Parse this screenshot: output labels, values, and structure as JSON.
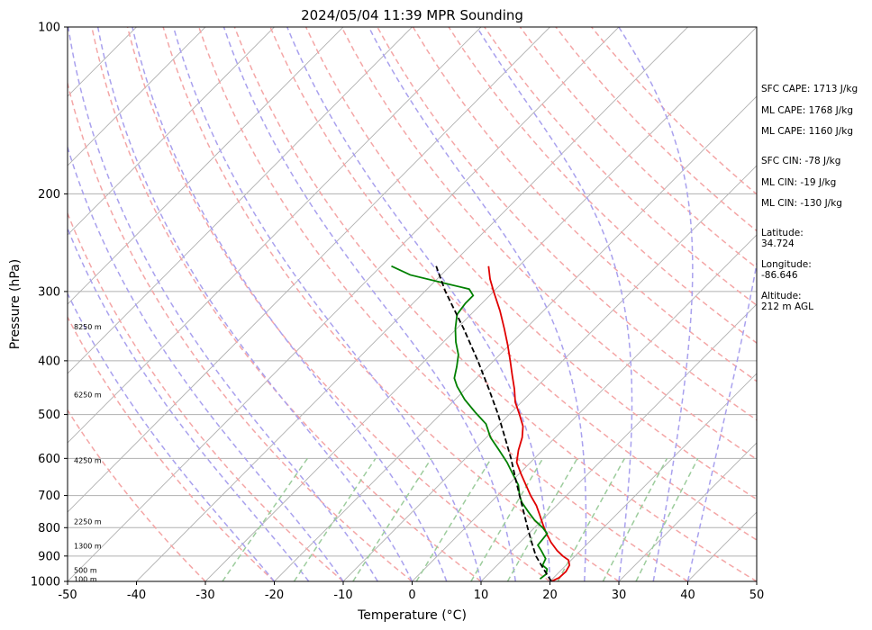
{
  "chart_data": {
    "type": "line",
    "title": "2024/05/04 11:39 MPR Sounding",
    "xlabel": "Temperature (°C)",
    "ylabel": "Pressure (hPa)",
    "xlim": [
      -50,
      50
    ],
    "ylim": [
      1000,
      100
    ],
    "yscale": "log",
    "skew": "skew-T",
    "x_ticks": [
      -50,
      -40,
      -30,
      -20,
      -10,
      0,
      10,
      20,
      30,
      40,
      50
    ],
    "y_ticks": [
      100,
      200,
      300,
      400,
      500,
      600,
      700,
      800,
      900,
      1000
    ],
    "grid": true,
    "series": [
      {
        "role": "temperature",
        "color": "#e00000",
        "points": [
          [
            1000,
            20.2
          ],
          [
            985,
            20.8
          ],
          [
            960,
            20.9
          ],
          [
            935,
            20.5
          ],
          [
            915,
            19.6
          ],
          [
            900,
            18.2
          ],
          [
            880,
            16.6
          ],
          [
            850,
            14.5
          ],
          [
            820,
            12.6
          ],
          [
            790,
            10.8
          ],
          [
            760,
            9.0
          ],
          [
            730,
            7.1
          ],
          [
            700,
            4.8
          ],
          [
            670,
            2.6
          ],
          [
            640,
            0.3
          ],
          [
            610,
            -2.0
          ],
          [
            580,
            -3.5
          ],
          [
            550,
            -4.8
          ],
          [
            525,
            -6.3
          ],
          [
            500,
            -8.5
          ],
          [
            475,
            -10.9
          ],
          [
            450,
            -12.9
          ],
          [
            425,
            -15.2
          ],
          [
            400,
            -17.6
          ],
          [
            375,
            -20.2
          ],
          [
            350,
            -23.1
          ],
          [
            325,
            -26.3
          ],
          [
            300,
            -30.0
          ],
          [
            285,
            -32.3
          ],
          [
            270,
            -34.4
          ]
        ]
      },
      {
        "role": "dewpoint",
        "color": "#008000",
        "points": [
          [
            990,
            18.2
          ],
          [
            970,
            18.4
          ],
          [
            950,
            17.8
          ],
          [
            935,
            16.6
          ],
          [
            910,
            16.1
          ],
          [
            880,
            14.3
          ],
          [
            860,
            13.0
          ],
          [
            845,
            12.9
          ],
          [
            820,
            12.7
          ],
          [
            800,
            11.2
          ],
          [
            775,
            8.9
          ],
          [
            750,
            6.9
          ],
          [
            720,
            4.5
          ],
          [
            700,
            3.2
          ],
          [
            670,
            1.5
          ],
          [
            640,
            -0.9
          ],
          [
            610,
            -3.4
          ],
          [
            580,
            -6.3
          ],
          [
            550,
            -9.4
          ],
          [
            520,
            -12.0
          ],
          [
            495,
            -15.3
          ],
          [
            470,
            -18.6
          ],
          [
            445,
            -21.6
          ],
          [
            430,
            -23.2
          ],
          [
            410,
            -24.5
          ],
          [
            390,
            -26.0
          ],
          [
            370,
            -28.2
          ],
          [
            350,
            -30.2
          ],
          [
            330,
            -32.0
          ],
          [
            315,
            -32.4
          ],
          [
            305,
            -32.4
          ],
          [
            297,
            -33.9
          ],
          [
            290,
            -38.2
          ],
          [
            280,
            -44.5
          ],
          [
            270,
            -48.5
          ]
        ]
      },
      {
        "role": "parcel",
        "color": "#000000",
        "style": "dashed",
        "points": [
          [
            1000,
            20.2
          ],
          [
            950,
            17.3
          ],
          [
            900,
            14.3
          ],
          [
            850,
            11.7
          ],
          [
            800,
            9.0
          ],
          [
            750,
            6.2
          ],
          [
            700,
            3.2
          ],
          [
            650,
            0.0
          ],
          [
            600,
            -3.4
          ],
          [
            550,
            -7.3
          ],
          [
            500,
            -11.6
          ],
          [
            450,
            -16.6
          ],
          [
            400,
            -22.3
          ],
          [
            350,
            -29.0
          ],
          [
            300,
            -37.0
          ],
          [
            270,
            -42.0
          ]
        ]
      }
    ],
    "dry_adiabats_theta_c": [
      -30,
      -20,
      -10,
      0,
      10,
      20,
      30,
      40,
      50,
      60,
      70,
      80,
      90,
      100,
      110,
      120,
      130,
      140,
      150
    ],
    "moist_adiabats_start_c": [
      -20,
      -15,
      -10,
      -5,
      0,
      5,
      10,
      15,
      20,
      25,
      30,
      35,
      40
    ],
    "mixing_ratio_lines_gkg": [
      0.4,
      1,
      2,
      4,
      7,
      10,
      16,
      24,
      32
    ],
    "height_labels": [
      {
        "p": 990,
        "label": "100 m"
      },
      {
        "p": 955,
        "label": "500 m"
      },
      {
        "p": 862,
        "label": "1300 m"
      },
      {
        "p": 780,
        "label": "2250 m"
      },
      {
        "p": 605,
        "label": "4250 m"
      },
      {
        "p": 460,
        "label": "6250 m"
      },
      {
        "p": 347,
        "label": "8250 m"
      }
    ],
    "info_panel": [
      "SFC CAPE: 1713 J/kg",
      "ML CAPE: 1768 J/kg",
      "ML CAPE: 1160 J/kg",
      "SFC CIN: -78 J/kg",
      "ML CIN: -19 J/kg",
      "ML CIN: -130 J/kg",
      "Latitude:",
      "34.724",
      "Longitude:",
      "-86.646",
      "Altitude:",
      "212 m AGL"
    ],
    "colors": {
      "isotherm": "#b0b0b0",
      "isobar": "#b0b0b0",
      "dry_adiabat": "#f4a6a6",
      "moist_adiabat": "#a9a1ee",
      "mixing_ratio": "#9ccc9c"
    }
  }
}
